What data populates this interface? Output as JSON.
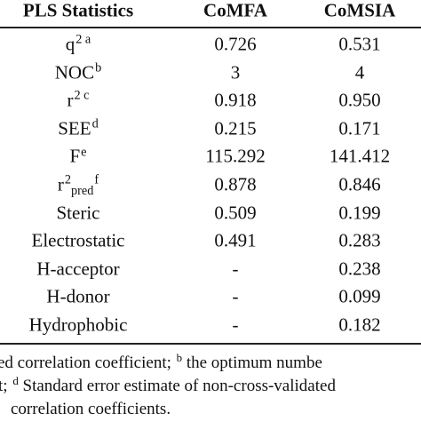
{
  "table": {
    "header": [
      "PLS Statistics",
      "CoMFA",
      "CoMSIA"
    ],
    "rows": [
      {
        "label": [
          {
            "text": "q"
          },
          {
            "sup": "2 a"
          }
        ],
        "comfa": "0.726",
        "comsia": "0.531"
      },
      {
        "label": [
          {
            "text": "NOC"
          },
          {
            "sup": "b"
          }
        ],
        "comfa": "3",
        "comsia": "4"
      },
      {
        "label": [
          {
            "text": "r"
          },
          {
            "sup": "2 c"
          }
        ],
        "comfa": "0.918",
        "comsia": "0.950"
      },
      {
        "label": [
          {
            "text": "SEE"
          },
          {
            "sup": "d"
          }
        ],
        "comfa": "0.215",
        "comsia": "0.171"
      },
      {
        "label": [
          {
            "text": "F"
          },
          {
            "sup": "e"
          }
        ],
        "comfa": "115.292",
        "comsia": "141.412"
      },
      {
        "label": [
          {
            "text": "r"
          },
          {
            "sup": "2"
          },
          {
            "sub": "pred"
          },
          {
            "sup": "f"
          }
        ],
        "comfa": "0.878",
        "comsia": "0.846"
      },
      {
        "label": [
          {
            "text": "Steric"
          }
        ],
        "comfa": "0.509",
        "comsia": "0.199"
      },
      {
        "label": [
          {
            "text": "Electrostatic"
          }
        ],
        "comfa": "0.491",
        "comsia": "0.283"
      },
      {
        "label": [
          {
            "text": "H-acceptor"
          }
        ],
        "comfa": "-",
        "comsia": "0.238"
      },
      {
        "label": [
          {
            "text": "H-donor"
          }
        ],
        "comfa": "-",
        "comsia": "0.099"
      },
      {
        "label": [
          {
            "text": "Hydrophobic"
          }
        ],
        "comfa": "-",
        "comsia": "0.182"
      }
    ],
    "footnotes": [
      [
        {
          "text": "ed correlation coefficient; "
        },
        {
          "sup": "b"
        },
        {
          "text": " the optimum numbe"
        }
      ],
      [
        {
          "text": "t; "
        },
        {
          "sup": "d"
        },
        {
          "text": " Standard error estimate of non-cross-validated"
        }
      ],
      [
        {
          "text": " correlation coefficients."
        }
      ]
    ]
  }
}
